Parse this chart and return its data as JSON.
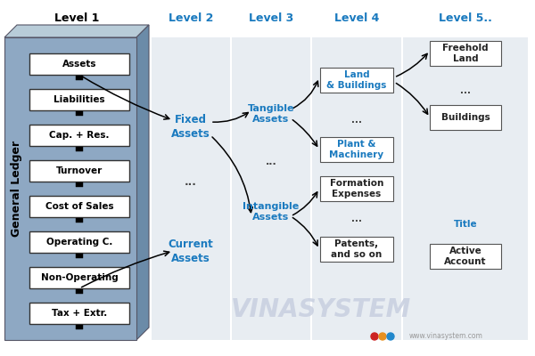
{
  "bg_color": "#ffffff",
  "gl_box_color": "#8ea8c3",
  "gl_side_color": "#6b8ba8",
  "gl_top_color": "#b8ccd8",
  "gl_label": "General Ledger",
  "level1_label": "Level 1",
  "level2_label": "Level 2",
  "level3_label": "Level 3",
  "level4_label": "Level 4",
  "level5_label": "Level 5..",
  "level_label_color": "#1a7abf",
  "level1_items": [
    "Assets",
    "Liabilities",
    "Cap. + Res.",
    "Turnover",
    "Cost of Sales",
    "Operating C.",
    "Non-Operating",
    "Tax + Extr."
  ],
  "col_bg_color": "#e8edf2",
  "watermark": "VINASYSTEM",
  "watermark_color": "#c8cfe0",
  "website": "www.vinasystem.com",
  "dot_colors": [
    "#cc2222",
    "#e89020",
    "#2288cc"
  ]
}
